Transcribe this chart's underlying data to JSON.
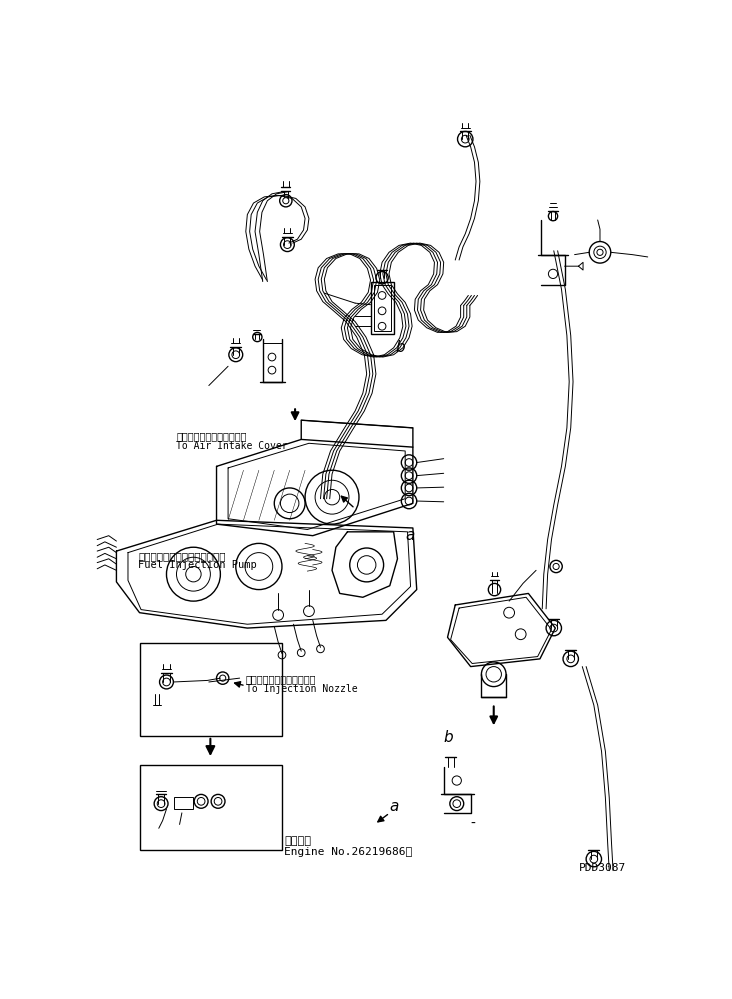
{
  "background_color": "#ffffff",
  "line_color": "#000000",
  "text_color": "#000000",
  "labels": {
    "air_intake_jp": "エアーインテークカバーヘ",
    "air_intake_en": "To Air Intake Cover",
    "fuel_pump_jp": "フェルインジェクションポンプ",
    "fuel_pump_en": "Fuel Injection Pump",
    "nozzle_jp": "インジェクションノズルヘ",
    "nozzle_en": "To Injection Nozzle",
    "engine_no_jp": "適用号機",
    "engine_no_en": "Engine No.26219686～",
    "part_no": "PDD3087",
    "label_a": "a",
    "label_b": "b"
  },
  "fig_width": 7.32,
  "fig_height": 9.99,
  "dpi": 100
}
